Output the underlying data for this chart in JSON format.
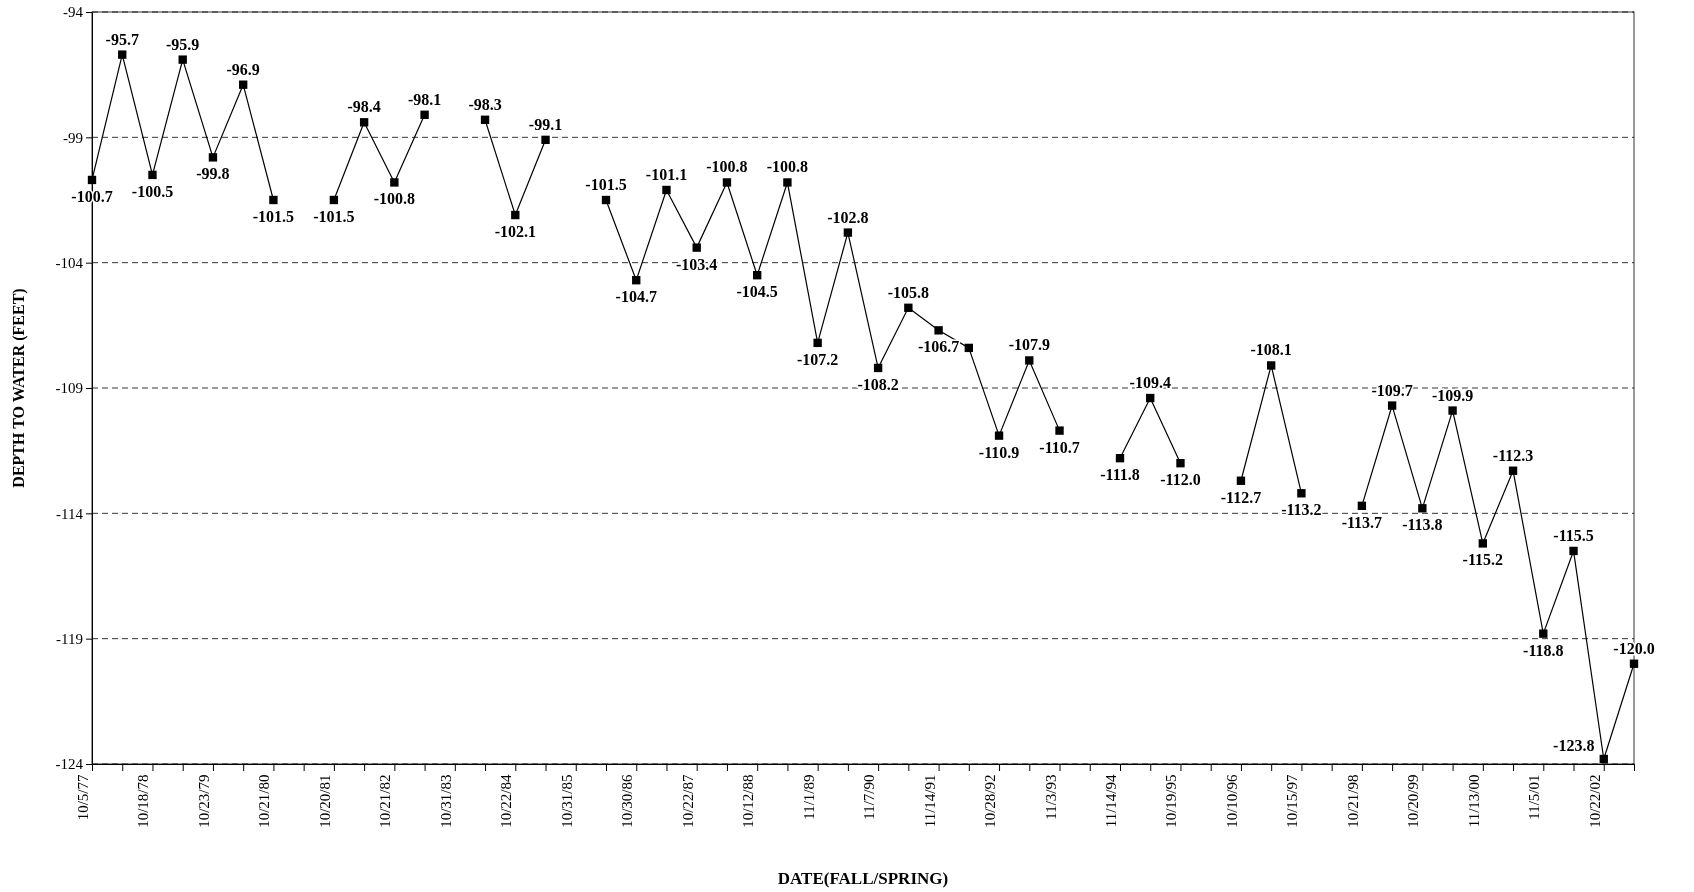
{
  "chart_data": {
    "type": "line",
    "xlabel": "DATE(FALL/SPRING)",
    "ylabel": "DEPTH TO WATER (FEET)",
    "categories": [
      "10/5/77",
      null,
      "10/18/78",
      null,
      "10/23/79",
      null,
      "10/21/80",
      null,
      "10/20/81",
      null,
      "10/21/82",
      null,
      "10/31/83",
      null,
      "10/22/84",
      null,
      "10/31/85",
      null,
      "10/30/86",
      null,
      "10/22/87",
      null,
      "10/12/88",
      null,
      "11/1/89",
      null,
      "11/7/90",
      null,
      "11/14/91",
      null,
      "10/28/92",
      null,
      "11/3/93",
      null,
      "11/14/94",
      null,
      "10/19/95",
      null,
      "10/10/96",
      null,
      "10/15/97",
      null,
      "10/21/98",
      null,
      "10/20/99",
      null,
      "11/13/00",
      null,
      "11/5/01",
      null,
      "10/22/02",
      null
    ],
    "series": [
      {
        "color": "#000000",
        "values": [
          -100.7,
          -95.7,
          -100.5,
          -95.9,
          -99.8,
          -96.9,
          -101.5,
          null,
          -101.5,
          -98.4,
          -100.8,
          -98.1,
          null,
          -98.3,
          -102.1,
          -99.1,
          null,
          -101.5,
          -104.7,
          -101.1,
          -103.4,
          -100.8,
          -104.5,
          -100.8,
          -107.2,
          -102.8,
          -108.2,
          -105.8,
          -106.7,
          -107.4,
          -110.9,
          -107.9,
          -110.7,
          null,
          -111.8,
          -109.4,
          -112.0,
          null,
          -112.7,
          -108.1,
          -113.2,
          null,
          -113.7,
          -109.7,
          -113.8,
          -109.9,
          -115.2,
          -112.3,
          -118.8,
          -115.5,
          -123.8,
          -120.0
        ],
        "value_labels": [
          "-100.7",
          "-95.7",
          "-100.5",
          "-95.9",
          "-99.8",
          "-96.9",
          "-101.5",
          null,
          "-101.5",
          "-98.4",
          "-100.8",
          "-98.1",
          null,
          "-98.3",
          "-102.1",
          "-99.1",
          null,
          "-101.5",
          "-104.7",
          "-101.1",
          "-103.4",
          "-100.8",
          "-104.5",
          "-100.8",
          "-107.2",
          "-102.8",
          "-108.2",
          "-105.8",
          "-106.7",
          null,
          "-110.9",
          "-107.9",
          "-110.7",
          null,
          "-111.8",
          "-109.4",
          "-112.0",
          null,
          "-112.7",
          "-108.1",
          "-113.2",
          null,
          "-113.7",
          "-109.7",
          "-113.8",
          "-109.9",
          "-115.2",
          "-112.3",
          "-118.8",
          "-115.5",
          "-123.8",
          "-120.0"
        ]
      }
    ],
    "ylim": [
      -124,
      -94
    ],
    "yticks": [
      -124,
      -119,
      -114,
      -109,
      -104,
      -99,
      -94
    ],
    "grid": "y",
    "marker": "square",
    "line_style": "solid"
  }
}
